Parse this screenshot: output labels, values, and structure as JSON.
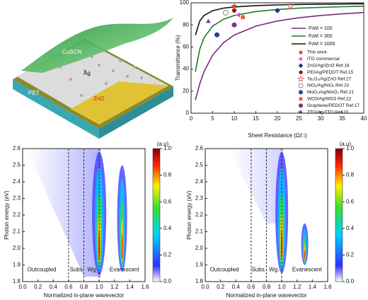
{
  "schematic": {
    "labels": [
      "CuSCN",
      "Ag",
      "ZnO",
      "PET"
    ]
  },
  "chart_data": [
    {
      "type": "line",
      "xlabel": "Sheet Resistance (Ω/□)",
      "ylabel": "Transmittance (%)",
      "x": [
        1,
        2,
        3,
        5,
        7.5,
        10,
        15,
        20,
        25,
        30,
        35,
        40
      ],
      "series": [
        {
          "name": "FoM = 100",
          "color": "#7b2a82",
          "values": [
            12.0,
            26.5,
            37.7,
            52.7,
            63.9,
            70.8,
            78.9,
            83.5,
            86.5,
            88.5,
            90.0,
            91.2
          ]
        },
        {
          "name": "FoM = 300",
          "color": "#1f7a2a",
          "values": [
            37.7,
            57.9,
            68.4,
            78.9,
            85.1,
            88.5,
            92.1,
            94.0,
            95.2,
            95.9,
            96.5,
            96.9
          ]
        },
        {
          "name": "FoM = 1000",
          "color": "#111111",
          "values": [
            70.8,
            83.5,
            88.5,
            92.9,
            95.2,
            96.3,
            97.5,
            98.1,
            98.5,
            98.8,
            98.9,
            99.1
          ]
        }
      ],
      "markers": [
        {
          "name": "This work",
          "color": "#e8332a",
          "shape": "star",
          "x": 10,
          "y": 97
        },
        {
          "name": "ITO commercial",
          "color": "#e03ce0",
          "shape": "triangle-left",
          "x": 11,
          "y": 89
        },
        {
          "name": "ZnO/Ag/IZnO Ref.18",
          "color": "#1d2f8f",
          "shape": "diamond",
          "x": 20,
          "y": 93
        },
        {
          "name": "PEI/Ag/PEDOT Ref.15",
          "color": "#8b1a1a",
          "shape": "pentagon",
          "x": 10,
          "y": 93
        },
        {
          "name": "Ta₂O₅/Ag/ZnO Ref.27",
          "color": "#e87070",
          "shape": "star-open",
          "x": 23,
          "y": 97
        },
        {
          "name": "NiOₓ/Ag/NiOₓ Ref.23",
          "color": "#888888",
          "shape": "circle-open",
          "x": 8,
          "y": 91
        },
        {
          "name": "MoO₃/Ag/MoO₃ Ref.21",
          "color": "#2040a0",
          "shape": "circle",
          "x": 6,
          "y": 71
        },
        {
          "name": "WO3/Ag/WO3 Ref.22",
          "color": "#f06030",
          "shape": "square",
          "x": 12,
          "y": 87
        },
        {
          "name": "Graphene/PEDOT Ref.17",
          "color": "#8a2a8a",
          "shape": "circle",
          "x": 10,
          "y": 80
        },
        {
          "name": "ZTO/Ag/ZTO Ref.20",
          "color": "#7a2a8a",
          "shape": "triangle",
          "x": 4,
          "y": 83
        }
      ],
      "xlim": [
        0,
        40
      ],
      "xticks": [
        0,
        5,
        10,
        15,
        20,
        25,
        30,
        35,
        40
      ],
      "ylim": [
        0,
        100
      ],
      "yticks": [
        0,
        20,
        40,
        60,
        80,
        100
      ]
    },
    {
      "type": "heatmap",
      "xlabel": "Normalized in-plane wavevector",
      "ylabel": "Photon energy (eV)",
      "xlim": [
        0,
        1.6
      ],
      "xticks": [
        {
          "value": 0,
          "label": "0.0"
        },
        0.2,
        0.4,
        0.6,
        0.8,
        {
          "value": 1,
          "label": "1.0"
        },
        1.2,
        1.4,
        1.6
      ],
      "ylim": [
        1.8,
        2.6
      ],
      "yticks": [
        1.8,
        1.9,
        {
          "value": 2,
          "label": "2.0"
        },
        2.1,
        2.2,
        2.3,
        2.4,
        2.5,
        2.6
      ],
      "dividers": [
        0.6,
        0.8,
        1.0
      ],
      "region_labels": [
        "Outcoupled",
        "Subs",
        "Wg",
        "Evanescent"
      ],
      "colorbar": {
        "label": "(a.u)",
        "lim": [
          0,
          1
        ],
        "ticks": [
          {
            "value": 0,
            "label": "0.0"
          },
          0.2,
          0.4,
          0.6,
          0.8,
          {
            "value": 1,
            "label": "1.0"
          }
        ]
      }
    },
    {
      "type": "heatmap",
      "xlabel": "Normalized in-plane wavevector",
      "ylabel": "Photon energy (eV)",
      "xlim": [
        0,
        1.6
      ],
      "xticks": [
        {
          "value": 0,
          "label": "0.0"
        },
        0.2,
        0.4,
        0.6,
        0.8,
        {
          "value": 1,
          "label": "1.0"
        },
        1.2,
        1.4,
        1.6
      ],
      "ylim": [
        1.8,
        2.6
      ],
      "yticks": [
        1.8,
        1.9,
        {
          "value": 2,
          "label": "2.0"
        },
        2.1,
        2.2,
        2.3,
        2.4,
        2.5,
        2.6
      ],
      "dividers": [
        0.6,
        0.8,
        1.0
      ],
      "region_labels": [
        "Outcoupled",
        "Subs.",
        "Wg.",
        "Evanescent"
      ],
      "colorbar": {
        "label": "(a.u)",
        "lim": [
          0,
          1
        ],
        "ticks": [
          {
            "value": 0,
            "label": "0.0"
          },
          0.2,
          0.4,
          0.6,
          0.8,
          {
            "value": 1,
            "label": "1.0"
          }
        ]
      }
    }
  ]
}
